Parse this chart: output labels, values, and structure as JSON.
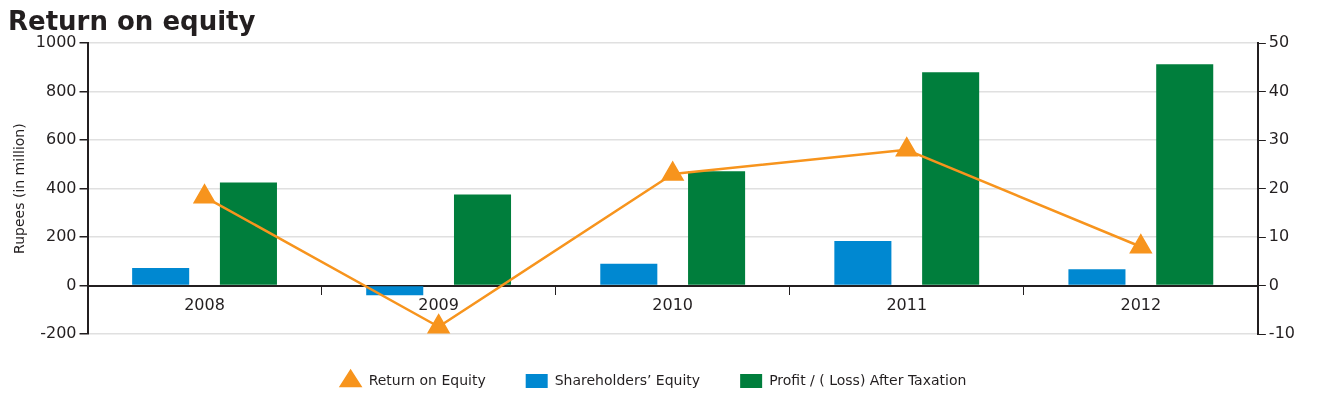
{
  "chart_data": {
    "type": "bar",
    "title": "Return on equity",
    "ylabel": "Rupees (in million)",
    "categories": [
      "2008",
      "2009",
      "2010",
      "2011",
      "2012"
    ],
    "series": [
      {
        "name": "Shareholders’ Equity",
        "color": "#0088d1",
        "values": [
          72,
          -40,
          90,
          184,
          67
        ]
      },
      {
        "name": "Profit / ( Loss) After Taxation",
        "color": "#007e3c",
        "values": [
          425,
          376,
          472,
          880,
          913
        ]
      },
      {
        "name": "Return on Equity",
        "type": "line",
        "axis": "y2",
        "color": "#f7941d",
        "marker": "triangle",
        "values": [
          18.3,
          -8.5,
          23,
          28,
          8
        ]
      }
    ],
    "ylim": [
      -200,
      1000
    ],
    "yticks": [
      -200,
      0,
      200,
      400,
      600,
      800,
      1000
    ],
    "y2lim": [
      -10,
      50
    ],
    "y2ticks": [
      -10,
      0,
      10,
      20,
      30,
      40,
      50
    ],
    "grid": "y",
    "legend": "bottom"
  }
}
